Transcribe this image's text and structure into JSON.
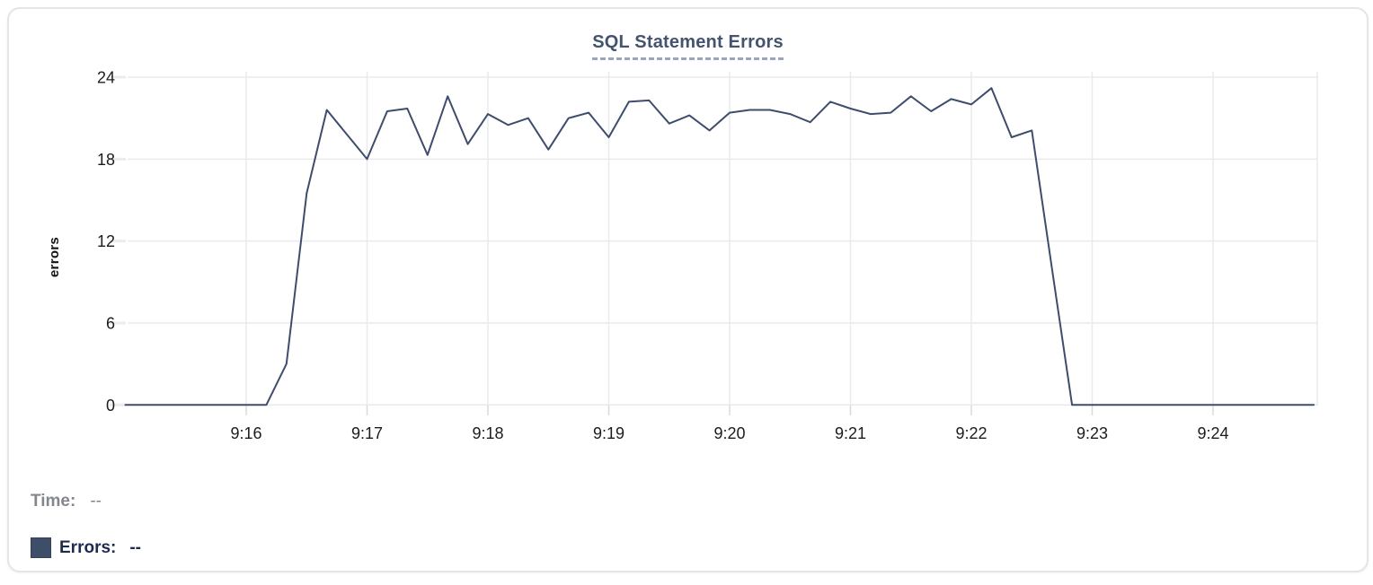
{
  "chart_data": {
    "type": "line",
    "title": "SQL Statement Errors",
    "xlabel": "",
    "ylabel": "errors",
    "x_ticks": [
      "9:16",
      "9:17",
      "9:18",
      "9:19",
      "9:20",
      "9:21",
      "9:22",
      "9:23",
      "9:24"
    ],
    "y_ticks": [
      0,
      6,
      12,
      18,
      24
    ],
    "ylim": [
      0,
      24
    ],
    "x_range": [
      "9:15:00",
      "9:24:50"
    ],
    "grid": true,
    "legend_position": "bottom-left",
    "series": [
      {
        "name": "Errors",
        "color": "#3e4d6c",
        "points": [
          [
            "9:15:00",
            0
          ],
          [
            "9:15:10",
            0
          ],
          [
            "9:15:20",
            0
          ],
          [
            "9:15:30",
            0
          ],
          [
            "9:15:40",
            0
          ],
          [
            "9:15:50",
            0
          ],
          [
            "9:16:00",
            0
          ],
          [
            "9:16:10",
            0
          ],
          [
            "9:16:20",
            3
          ],
          [
            "9:16:30",
            15.5
          ],
          [
            "9:16:40",
            21.6
          ],
          [
            "9:16:50",
            19.8
          ],
          [
            "9:17:00",
            18
          ],
          [
            "9:17:10",
            21.5
          ],
          [
            "9:17:20",
            21.7
          ],
          [
            "9:17:30",
            18.3
          ],
          [
            "9:17:40",
            22.6
          ],
          [
            "9:17:50",
            19.1
          ],
          [
            "9:18:00",
            21.3
          ],
          [
            "9:18:10",
            20.5
          ],
          [
            "9:18:20",
            21
          ],
          [
            "9:18:30",
            18.7
          ],
          [
            "9:18:40",
            21
          ],
          [
            "9:18:50",
            21.4
          ],
          [
            "9:19:00",
            19.6
          ],
          [
            "9:19:10",
            22.2
          ],
          [
            "9:19:20",
            22.3
          ],
          [
            "9:19:30",
            20.6
          ],
          [
            "9:19:40",
            21.2
          ],
          [
            "9:19:50",
            20.1
          ],
          [
            "9:20:00",
            21.4
          ],
          [
            "9:20:10",
            21.6
          ],
          [
            "9:20:20",
            21.6
          ],
          [
            "9:20:30",
            21.3
          ],
          [
            "9:20:40",
            20.7
          ],
          [
            "9:20:50",
            22.2
          ],
          [
            "9:21:00",
            21.7
          ],
          [
            "9:21:10",
            21.3
          ],
          [
            "9:21:20",
            21.4
          ],
          [
            "9:21:30",
            22.6
          ],
          [
            "9:21:40",
            21.5
          ],
          [
            "9:21:50",
            22.4
          ],
          [
            "9:22:00",
            22
          ],
          [
            "9:22:10",
            23.2
          ],
          [
            "9:22:20",
            19.6
          ],
          [
            "9:22:30",
            20.1
          ],
          [
            "9:22:40",
            10
          ],
          [
            "9:22:50",
            0
          ],
          [
            "9:23:00",
            0
          ],
          [
            "9:23:10",
            0
          ],
          [
            "9:23:20",
            0
          ],
          [
            "9:23:30",
            0
          ],
          [
            "9:23:40",
            0
          ],
          [
            "9:23:50",
            0
          ],
          [
            "9:24:00",
            0
          ],
          [
            "9:24:10",
            0
          ],
          [
            "9:24:20",
            0
          ],
          [
            "9:24:30",
            0
          ],
          [
            "9:24:40",
            0
          ],
          [
            "9:24:50",
            0
          ]
        ]
      }
    ]
  },
  "tooltip": {
    "time_label": "Time:",
    "time_value": "--",
    "series_label": "Errors:",
    "series_value": "--",
    "swatch_color": "#3f4e68"
  },
  "colors": {
    "line": "#3e4d6c",
    "title": "#44536e",
    "title_underline": "#9aa6bb",
    "grid": "#e9eaec",
    "tick": "#d8dadc",
    "axis_text": "#1b1c1e",
    "muted_text": "#83878d",
    "legend_text": "#1f2b4d",
    "card_border": "#e3e5e8"
  }
}
